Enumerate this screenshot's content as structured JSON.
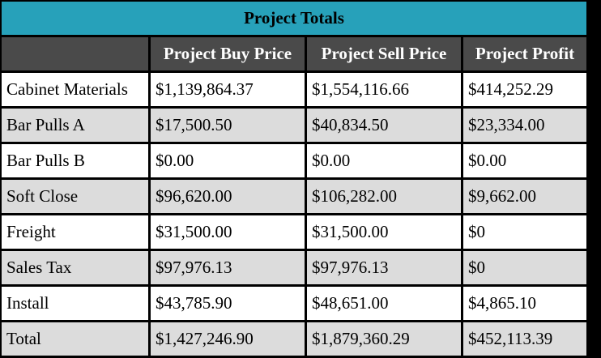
{
  "table": {
    "title": "Project Totals",
    "headers": [
      "",
      "Project Buy Price",
      "Project Sell Price",
      "Project Profit"
    ],
    "rows": [
      {
        "label": "Cabinet Materials",
        "buy": "$1,139,864.37",
        "sell": "$1,554,116.66",
        "profit": "$414,252.29"
      },
      {
        "label": "Bar Pulls A",
        "buy": "$17,500.50",
        "sell": "$40,834.50",
        "profit": "$23,334.00"
      },
      {
        "label": "Bar Pulls B",
        "buy": "$0.00",
        "sell": "$0.00",
        "profit": "$0.00"
      },
      {
        "label": "Soft Close",
        "buy": "$96,620.00",
        "sell": "$106,282.00",
        "profit": "$9,662.00"
      },
      {
        "label": "Freight",
        "buy": "$31,500.00",
        "sell": "$31,500.00",
        "profit": "$0"
      },
      {
        "label": "Sales Tax",
        "buy": "$97,976.13",
        "sell": "$97,976.13",
        "profit": "$0"
      },
      {
        "label": "Install",
        "buy": "$43,785.90",
        "sell": "$48,651.00",
        "profit": "$4,865.10"
      },
      {
        "label": "Total",
        "buy": "$1,427,246.90",
        "sell": "$1,879,360.29",
        "profit": "$452,113.39"
      }
    ]
  },
  "colors": {
    "title_background": "#27a1ba",
    "header_background": "#4a4a4a",
    "row_white": "#ffffff",
    "row_gray": "#dcdcdc",
    "border": "#000000"
  }
}
